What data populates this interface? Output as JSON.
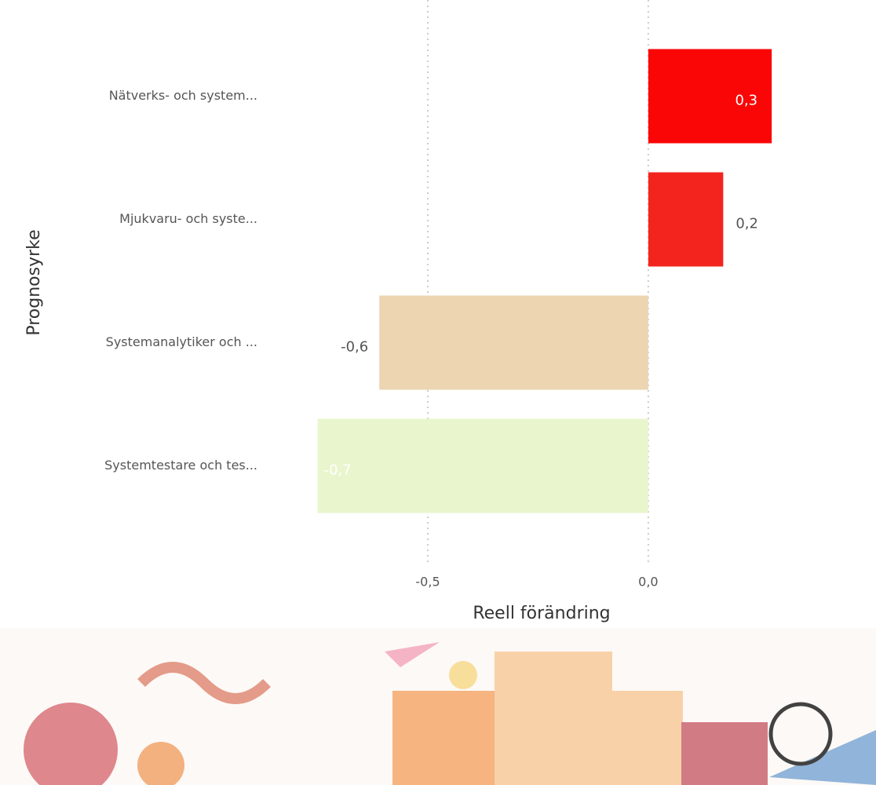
{
  "chart_data": {
    "type": "hbar",
    "categories": [
      "Nätverks- och system...",
      "Mjukvaru- och syste...",
      "Systemanalytiker och ...",
      "Systemtestare och tes..."
    ],
    "values": [
      0.28,
      0.17,
      -0.61,
      -0.75
    ],
    "value_labels": [
      "0,3",
      "0,2",
      "-0,6",
      "-0,7"
    ],
    "colors": [
      "#fa0606",
      "#f3241e",
      "#edd5b2",
      "#e9f5cd"
    ],
    "xlim": [
      -0.865,
      0.31
    ],
    "xticks": [
      {
        "value": -0.5,
        "label": "-0,5"
      },
      {
        "value": 0,
        "label": "0,0"
      }
    ],
    "grid": true,
    "xlabel": "Reell förändring",
    "ylabel": "Prognosyrke"
  }
}
